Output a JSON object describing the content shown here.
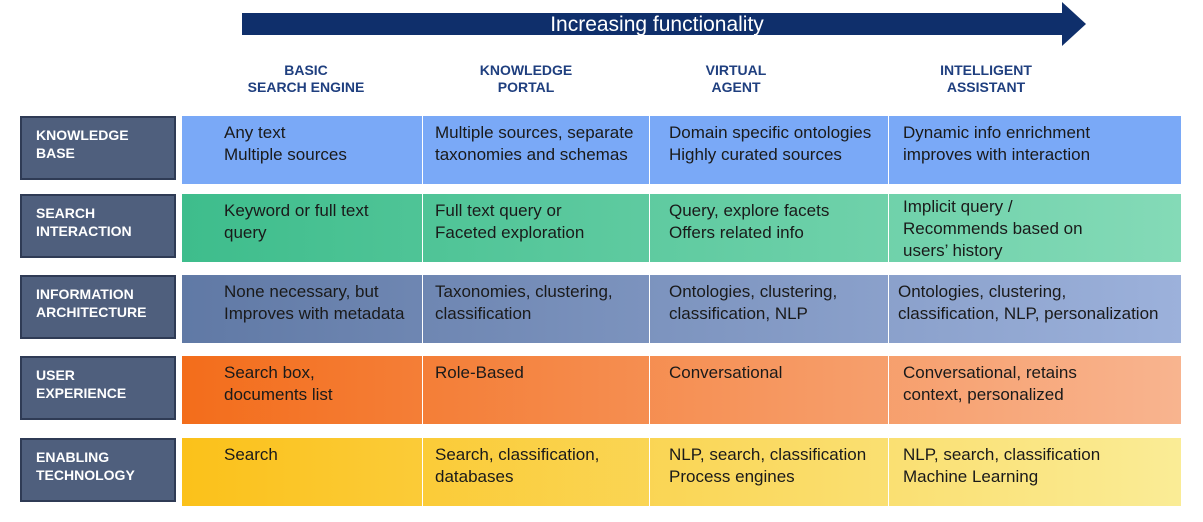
{
  "arrow": {
    "label": "Increasing functionality"
  },
  "columns": [
    "BASIC\nSEARCH ENGINE",
    "KNOWLEDGE\nPORTAL",
    "VIRTUAL\nAGENT",
    "INTELLIGENT\nASSISTANT"
  ],
  "rows": [
    {
      "label": "KNOWLEDGE\nBASE",
      "cells": [
        "Any text\nMultiple sources",
        "Multiple sources, separate\ntaxonomies and schemas",
        "Domain specific ontologies\nHighly curated sources",
        "Dynamic info enrichment\nimproves with interaction"
      ]
    },
    {
      "label": "SEARCH\nINTERACTION",
      "cells": [
        "Keyword or full text\nquery",
        "Full text query or\nFaceted exploration",
        "Query, explore  facets\nOffers related info",
        "Implicit query /\nRecommends based on\nusers’ history"
      ]
    },
    {
      "label": "INFORMATION\nARCHITECTURE",
      "cells": [
        "None necessary, but\nImproves with metadata",
        "Taxonomies, clustering,\nclassification",
        "Ontologies, clustering,\nclassification, NLP",
        "Ontologies, clustering,\nclassification, NLP, personalization"
      ]
    },
    {
      "label": "USER\nEXPERIENCE",
      "cells": [
        "Search box,\ndocuments list",
        "Role-Based",
        "Conversational",
        "Conversational, retains\ncontext, personalized"
      ]
    },
    {
      "label": "ENABLING\nTECHNOLOGY",
      "cells": [
        "Search",
        "Search, classification,\ndatabases",
        "NLP, search, classification\nProcess engines",
        "NLP, search, classification\nMachine Learning"
      ]
    }
  ],
  "colors": {
    "arrow": "#0f2f6b",
    "header_text": "#1f3f7f",
    "row_label_bg": "#4f5f7d",
    "knowledge_base": "#7aa9f7",
    "search_interaction": [
      "#3ebd8c",
      "#84dab7"
    ],
    "information_architecture": [
      "#6079a5",
      "#9cb1db"
    ],
    "user_experience": [
      "#f36d1b",
      "#f8b48f"
    ],
    "enabling_technology": [
      "#fbc11a",
      "#faec96"
    ]
  }
}
